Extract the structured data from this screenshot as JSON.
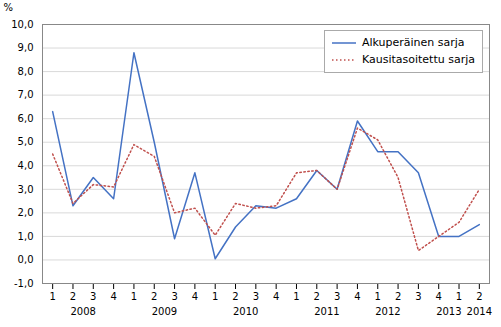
{
  "chart_data": {
    "type": "line",
    "ylabel": "%",
    "categories": [
      "1",
      "2",
      "3",
      "4",
      "1",
      "2",
      "3",
      "4",
      "1",
      "2",
      "3",
      "4",
      "1",
      "2",
      "3",
      "4",
      "1",
      "2",
      "3",
      "4",
      "1",
      "2"
    ],
    "series": [
      {
        "name": "Alkuperäinen sarja",
        "color": "#4472C4",
        "line_style": "solid",
        "values": [
          6.3,
          2.3,
          3.5,
          2.6,
          8.8,
          5.0,
          0.9,
          3.7,
          0.05,
          1.4,
          2.3,
          2.2,
          2.6,
          3.8,
          3.0,
          5.9,
          4.6,
          4.6,
          3.7,
          1.0,
          1.0,
          1.5
        ]
      },
      {
        "name": "Kausitasoitettu sarja",
        "color": "#C0504D",
        "line_style": "dotted",
        "values": [
          4.5,
          2.4,
          3.2,
          3.1,
          4.9,
          4.4,
          2.0,
          2.2,
          1.05,
          2.4,
          2.2,
          2.3,
          3.7,
          3.8,
          3.0,
          5.6,
          5.1,
          3.5,
          0.4,
          1.0,
          1.6,
          3.0
        ]
      }
    ],
    "ylim": [
      -1.0,
      10.0
    ],
    "yticks": [
      {
        "value": -1.0,
        "label": "-1,0"
      },
      {
        "value": 0.0,
        "label": "0,0"
      },
      {
        "value": 1.0,
        "label": "1,0"
      },
      {
        "value": 2.0,
        "label": "2,0"
      },
      {
        "value": 3.0,
        "label": "3,0"
      },
      {
        "value": 4.0,
        "label": "4,0"
      },
      {
        "value": 5.0,
        "label": "5,0"
      },
      {
        "value": 6.0,
        "label": "6,0"
      },
      {
        "value": 7.0,
        "label": "7,0"
      },
      {
        "value": 8.0,
        "label": "8,0"
      },
      {
        "value": 9.0,
        "label": "9,0"
      },
      {
        "value": 10.0,
        "label": "10,0"
      }
    ],
    "grid": true,
    "legend": "upper right",
    "annotations": [
      {
        "text": "2008",
        "x": 2.5
      },
      {
        "text": "2009",
        "x": 6.5
      },
      {
        "text": "2010",
        "x": 10.5
      },
      {
        "text": "2011",
        "x": 14.5
      },
      {
        "text": "2012",
        "x": 17.5
      },
      {
        "text": "2013",
        "x": 20.5
      },
      {
        "text": "2014",
        "x": 22.0
      }
    ]
  }
}
